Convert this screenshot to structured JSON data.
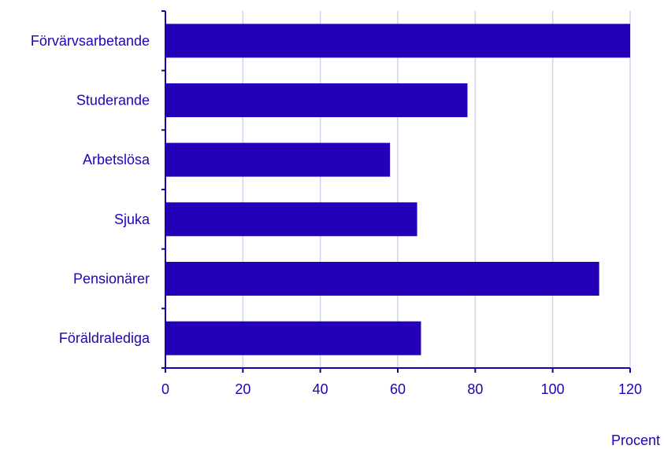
{
  "colors": {
    "bar": "#2400B8",
    "axis": "#1D00A0",
    "grid": "#D4D3EE",
    "text": "#2400B8"
  },
  "chart_data": {
    "type": "bar",
    "orientation": "horizontal",
    "title": "",
    "xlabel": "Procent",
    "ylabel": "",
    "categories": [
      "Förvärvsarbetande",
      "Studerande",
      "Arbetslösa",
      "Sjuka",
      "Pensionärer",
      "Föräldralediga"
    ],
    "values": [
      120,
      78,
      58,
      65,
      112,
      66
    ],
    "xlim": [
      0,
      120
    ],
    "xticks": [
      0,
      20,
      40,
      60,
      80,
      100,
      120
    ],
    "grid": true,
    "legend": "none"
  }
}
